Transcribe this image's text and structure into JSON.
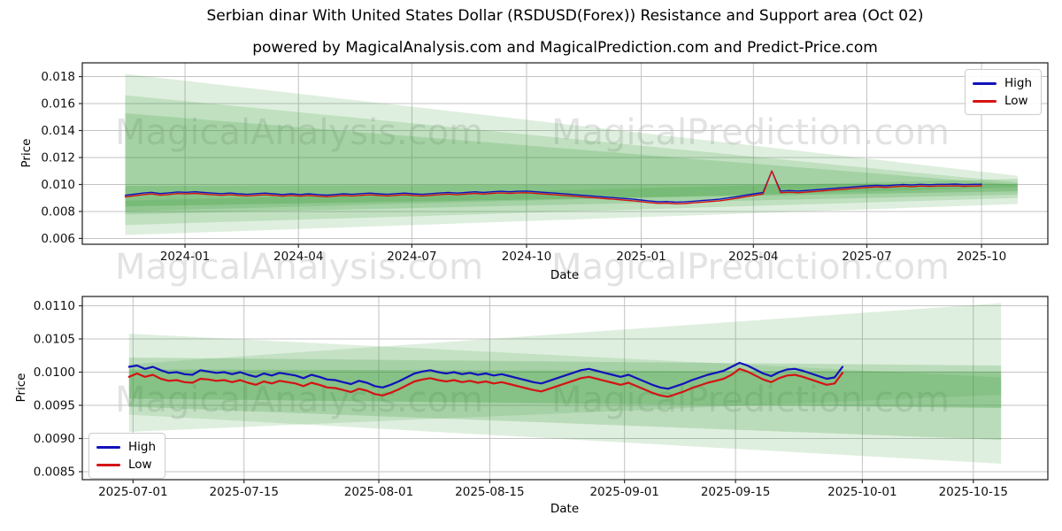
{
  "header": {
    "title": "Serbian dinar With United States Dollar (RSDUSD(Forex)) Resistance and Support area (Oct 02)",
    "subtitle": "powered by MagicalAnalysis.com and MagicalPrediction.com and Predict-Price.com"
  },
  "watermarks": {
    "left": "MagicalAnalysis.com",
    "right": "MagicalPrediction.com"
  },
  "colors": {
    "high": "#1212bb",
    "low": "#d41414",
    "band": "#3a9d3a",
    "grid": "#c3c3c3",
    "spine": "#2b2b2b",
    "tick_text": "#111111"
  },
  "chart_data": [
    {
      "type": "line",
      "name": "full-history",
      "xlabel": "Date",
      "ylabel": "Price",
      "x_domain": [
        -82.4,
        692.2
      ],
      "y_domain": [
        0.00557,
        0.01902
      ],
      "x_ticks": [
        {
          "pos": 0,
          "label": "2024-01"
        },
        {
          "pos": 91,
          "label": "2024-04"
        },
        {
          "pos": 182,
          "label": "2024-07"
        },
        {
          "pos": 274,
          "label": "2024-10"
        },
        {
          "pos": 366,
          "label": "2025-01"
        },
        {
          "pos": 456,
          "label": "2025-04"
        },
        {
          "pos": 547,
          "label": "2025-07"
        },
        {
          "pos": 639,
          "label": "2025-10"
        }
      ],
      "y_ticks": [
        {
          "pos": 0.006,
          "label": "0.006"
        },
        {
          "pos": 0.008,
          "label": "0.008"
        },
        {
          "pos": 0.01,
          "label": "0.010"
        },
        {
          "pos": 0.012,
          "label": "0.012"
        },
        {
          "pos": 0.014,
          "label": "0.014"
        },
        {
          "pos": 0.016,
          "label": "0.016"
        },
        {
          "pos": 0.018,
          "label": "0.018"
        }
      ],
      "legend_position": "top-right",
      "bands": [
        {
          "opacity": 0.16,
          "points": [
            [
              -48,
              0.0182
            ],
            [
              668,
              0.01065
            ],
            [
              668,
              0.00855
            ],
            [
              -48,
              0.00625
            ]
          ]
        },
        {
          "opacity": 0.18,
          "points": [
            [
              -48,
              0.01662
            ],
            [
              668,
              0.01015
            ],
            [
              668,
              0.009
            ],
            [
              -48,
              0.007
            ]
          ]
        },
        {
          "opacity": 0.2,
          "points": [
            [
              -48,
              0.01528
            ],
            [
              668,
              0.00998
            ],
            [
              668,
              0.00925
            ],
            [
              -48,
              0.00778
            ]
          ]
        },
        {
          "opacity": 0.2,
          "points": [
            [
              -48,
              0.0088
            ],
            [
              668,
              0.01042
            ],
            [
              668,
              0.00978
            ],
            [
              -48,
              0.00802
            ]
          ]
        },
        {
          "opacity": 0.28,
          "points": [
            [
              -48,
              0.0099
            ],
            [
              668,
              0.01005
            ],
            [
              668,
              0.0095
            ],
            [
              -48,
              0.00838
            ]
          ]
        }
      ],
      "series": [
        {
          "name": "High",
          "color_key": "high",
          "width": 1.4,
          "x0": -48,
          "dx": 7.0102,
          "values": [
            0.0092,
            0.00928,
            0.00936,
            0.00942,
            0.00933,
            0.00938,
            0.00945,
            0.00942,
            0.00946,
            0.00941,
            0.00936,
            0.00932,
            0.00937,
            0.00931,
            0.00927,
            0.00932,
            0.00936,
            0.00931,
            0.00926,
            0.00931,
            0.00926,
            0.00931,
            0.00926,
            0.00921,
            0.00926,
            0.00931,
            0.00927,
            0.00932,
            0.00936,
            0.00931,
            0.00927,
            0.00932,
            0.00936,
            0.00931,
            0.00927,
            0.00932,
            0.00937,
            0.00941,
            0.00936,
            0.00941,
            0.00946,
            0.00941,
            0.00946,
            0.0095,
            0.00946,
            0.0095,
            0.00951,
            0.00946,
            0.00941,
            0.00937,
            0.00932,
            0.00927,
            0.00922,
            0.00917,
            0.00912,
            0.00907,
            0.00902,
            0.00897,
            0.00892,
            0.00885,
            0.00878,
            0.00872,
            0.00874,
            0.00869,
            0.00871,
            0.00876,
            0.00881,
            0.00886,
            0.00891,
            0.009,
            0.0091,
            0.00921,
            0.00931,
            0.00941,
            0.011,
            0.00951,
            0.00955,
            0.00951,
            0.00956,
            0.00961,
            0.00966,
            0.00971,
            0.00976,
            0.00981,
            0.00986,
            0.0099,
            0.00994,
            0.0099,
            0.00995,
            0.01,
            0.00996,
            0.01001,
            0.00998,
            0.01001,
            0.01001,
            0.01003,
            0.00999,
            0.01001,
            0.01002
          ]
        },
        {
          "name": "Low",
          "color_key": "low",
          "width": 1.4,
          "x0": -48,
          "dx": 7.0102,
          "values": [
            0.00908,
            0.00916,
            0.00924,
            0.0093,
            0.00921,
            0.00926,
            0.00933,
            0.0093,
            0.00934,
            0.00929,
            0.00924,
            0.0092,
            0.00925,
            0.00919,
            0.00915,
            0.0092,
            0.00924,
            0.00919,
            0.00914,
            0.00919,
            0.00914,
            0.00919,
            0.00914,
            0.00909,
            0.00914,
            0.00919,
            0.00915,
            0.0092,
            0.00924,
            0.00919,
            0.00915,
            0.0092,
            0.00924,
            0.00919,
            0.00915,
            0.0092,
            0.00925,
            0.00929,
            0.00924,
            0.00929,
            0.00934,
            0.00929,
            0.00934,
            0.00938,
            0.00934,
            0.00938,
            0.00939,
            0.00934,
            0.00929,
            0.00925,
            0.0092,
            0.00915,
            0.0091,
            0.00905,
            0.009,
            0.00895,
            0.0089,
            0.00885,
            0.0088,
            0.00873,
            0.00866,
            0.0086,
            0.00862,
            0.00857,
            0.00859,
            0.00864,
            0.00869,
            0.00874,
            0.00879,
            0.00888,
            0.00898,
            0.00909,
            0.00919,
            0.00929,
            0.011,
            0.00939,
            0.00943,
            0.00939,
            0.00944,
            0.00949,
            0.00954,
            0.00959,
            0.00964,
            0.00969,
            0.00974,
            0.00978,
            0.00982,
            0.00978,
            0.00983,
            0.00988,
            0.00984,
            0.00989,
            0.00986,
            0.00989,
            0.00989,
            0.00991,
            0.00987,
            0.00989,
            0.0099
          ]
        }
      ]
    },
    {
      "type": "line",
      "name": "recent-three-months",
      "xlabel": "Date",
      "ylabel": "Price",
      "x_domain": [
        -6.4,
        115.4
      ],
      "y_domain": [
        0.00838,
        0.01114
      ],
      "x_ticks": [
        {
          "pos": 0,
          "label": "2025-07-01"
        },
        {
          "pos": 14,
          "label": "2025-07-15"
        },
        {
          "pos": 31,
          "label": "2025-08-01"
        },
        {
          "pos": 45,
          "label": "2025-08-15"
        },
        {
          "pos": 62,
          "label": "2025-09-01"
        },
        {
          "pos": 76,
          "label": "2025-09-15"
        },
        {
          "pos": 92,
          "label": "2025-10-01"
        },
        {
          "pos": 106,
          "label": "2025-10-15"
        }
      ],
      "y_ticks": [
        {
          "pos": 0.0085,
          "label": "0.0085"
        },
        {
          "pos": 0.009,
          "label": "0.0090"
        },
        {
          "pos": 0.0095,
          "label": "0.0095"
        },
        {
          "pos": 0.01,
          "label": "0.0100"
        },
        {
          "pos": 0.0105,
          "label": "0.0105"
        },
        {
          "pos": 0.011,
          "label": "0.0110"
        }
      ],
      "legend_position": "bottom-left",
      "bands": [
        {
          "opacity": 0.16,
          "points": [
            [
              -0.5,
              0.01058
            ],
            [
              109.5,
              0.00992
            ],
            [
              109.5,
              0.00862
            ],
            [
              -0.5,
              0.00936
            ]
          ]
        },
        {
          "opacity": 0.16,
          "points": [
            [
              -0.5,
              0.01012
            ],
            [
              109.5,
              0.01104
            ],
            [
              109.5,
              0.00966
            ],
            [
              -0.5,
              0.0091
            ]
          ]
        },
        {
          "opacity": 0.22,
          "points": [
            [
              -0.5,
              0.01022
            ],
            [
              109.5,
              0.0101
            ],
            [
              109.5,
              0.00898
            ],
            [
              -0.5,
              0.00948
            ]
          ]
        },
        {
          "opacity": 0.3,
          "points": [
            [
              -0.5,
              0.01004
            ],
            [
              109.5,
              0.01001
            ],
            [
              109.5,
              0.00946
            ],
            [
              -0.5,
              0.0096
            ]
          ]
        }
      ],
      "series": [
        {
          "name": "High",
          "color_key": "high",
          "width": 2.2,
          "x0": -0.5,
          "dx": 1,
          "values": [
            0.01008,
            0.0101,
            0.01005,
            0.01008,
            0.01003,
            0.00999,
            0.01,
            0.00997,
            0.00996,
            0.01003,
            0.01001,
            0.00999,
            0.01,
            0.00997,
            0.01,
            0.00996,
            0.00993,
            0.00998,
            0.00995,
            0.00999,
            0.00997,
            0.00995,
            0.00991,
            0.00996,
            0.00993,
            0.00989,
            0.00988,
            0.00985,
            0.00982,
            0.00987,
            0.00984,
            0.00979,
            0.00977,
            0.00981,
            0.00986,
            0.00992,
            0.00998,
            0.01001,
            0.01003,
            0.01,
            0.00998,
            0.01,
            0.00997,
            0.00999,
            0.00996,
            0.00998,
            0.00995,
            0.00997,
            0.00994,
            0.00991,
            0.00988,
            0.00985,
            0.00983,
            0.00987,
            0.00991,
            0.00995,
            0.00999,
            0.01003,
            0.01005,
            0.01002,
            0.00999,
            0.00996,
            0.00993,
            0.00996,
            0.00991,
            0.00986,
            0.00981,
            0.00977,
            0.00975,
            0.00979,
            0.00983,
            0.00988,
            0.00992,
            0.00996,
            0.00999,
            0.01002,
            0.01008,
            0.01014,
            0.0101,
            0.01004,
            0.00998,
            0.00994,
            0.01,
            0.01004,
            0.01005,
            0.01002,
            0.00998,
            0.00994,
            0.0099,
            0.00992,
            0.01008
          ]
        },
        {
          "name": "Low",
          "color_key": "low",
          "width": 2.2,
          "x0": -0.5,
          "dx": 1,
          "values": [
            0.00993,
            0.00998,
            0.00993,
            0.00996,
            0.0099,
            0.00987,
            0.00988,
            0.00985,
            0.00984,
            0.0099,
            0.00989,
            0.00987,
            0.00988,
            0.00985,
            0.00988,
            0.00984,
            0.00981,
            0.00986,
            0.00983,
            0.00987,
            0.00985,
            0.00983,
            0.00979,
            0.00984,
            0.00981,
            0.00977,
            0.00976,
            0.00973,
            0.0097,
            0.00975,
            0.00972,
            0.00967,
            0.00965,
            0.00969,
            0.00974,
            0.0098,
            0.00986,
            0.00989,
            0.00991,
            0.00988,
            0.00986,
            0.00988,
            0.00985,
            0.00987,
            0.00984,
            0.00986,
            0.00983,
            0.00985,
            0.00982,
            0.00979,
            0.00976,
            0.00973,
            0.00971,
            0.00975,
            0.00979,
            0.00983,
            0.00987,
            0.00991,
            0.00993,
            0.0099,
            0.00987,
            0.00984,
            0.00981,
            0.00984,
            0.00979,
            0.00974,
            0.00969,
            0.00965,
            0.00963,
            0.00967,
            0.00971,
            0.00976,
            0.0098,
            0.00984,
            0.00987,
            0.0099,
            0.00996,
            0.01005,
            0.01001,
            0.00995,
            0.00989,
            0.00985,
            0.00991,
            0.00995,
            0.00996,
            0.00993,
            0.00989,
            0.00985,
            0.00981,
            0.00983,
            0.00999
          ]
        }
      ]
    }
  ]
}
